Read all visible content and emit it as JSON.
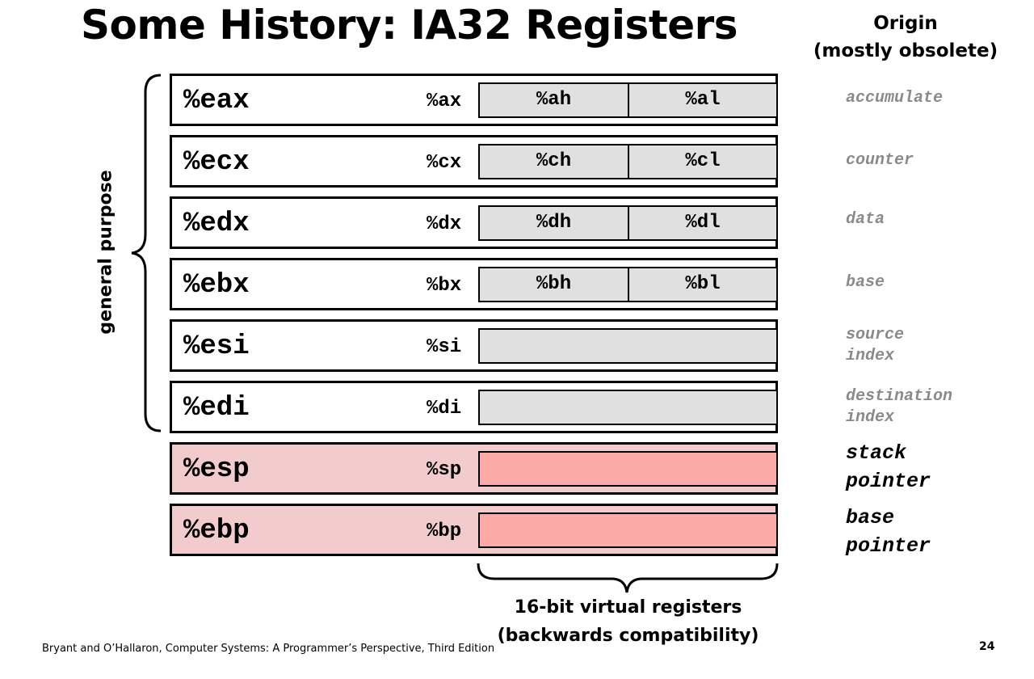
{
  "title": "Some History: IA32 Registers",
  "origin_header": {
    "line1": "Origin",
    "line2": "(mostly obsolete)"
  },
  "general_purpose_label": "general purpose",
  "registers": [
    {
      "name": "%eax",
      "reg16": "%ax",
      "high": "%ah",
      "low": "%al",
      "origin": [
        "accumulate"
      ]
    },
    {
      "name": "%ecx",
      "reg16": "%cx",
      "high": "%ch",
      "low": "%cl",
      "origin": [
        "counter"
      ]
    },
    {
      "name": "%edx",
      "reg16": "%dx",
      "high": "%dh",
      "low": "%dl",
      "origin": [
        "data"
      ]
    },
    {
      "name": "%ebx",
      "reg16": "%bx",
      "high": "%bh",
      "low": "%bl",
      "origin": [
        "base"
      ]
    },
    {
      "name": "%esi",
      "reg16": "%si",
      "origin": [
        "source",
        "index"
      ]
    },
    {
      "name": "%edi",
      "reg16": "%di",
      "origin": [
        "destination",
        "index"
      ]
    },
    {
      "name": "%esp",
      "reg16": "%sp",
      "origin": [
        "stack",
        "pointer"
      ]
    },
    {
      "name": "%ebp",
      "reg16": "%bp",
      "origin": [
        "base",
        "pointer"
      ]
    }
  ],
  "virtual_registers_label": {
    "line1": "16-bit virtual registers",
    "line2": "(backwards compatibility)"
  },
  "footer": "Bryant and O’Hallaron, Computer Systems: A Programmer’s Perspective, Third Edition",
  "page_number": "24",
  "colors": {
    "gray_fill": "#e0e0e0",
    "pink_fill": "#f2cccc",
    "red_fill": "#fca9a9",
    "origin_text_gray": "#8a8a8a"
  }
}
